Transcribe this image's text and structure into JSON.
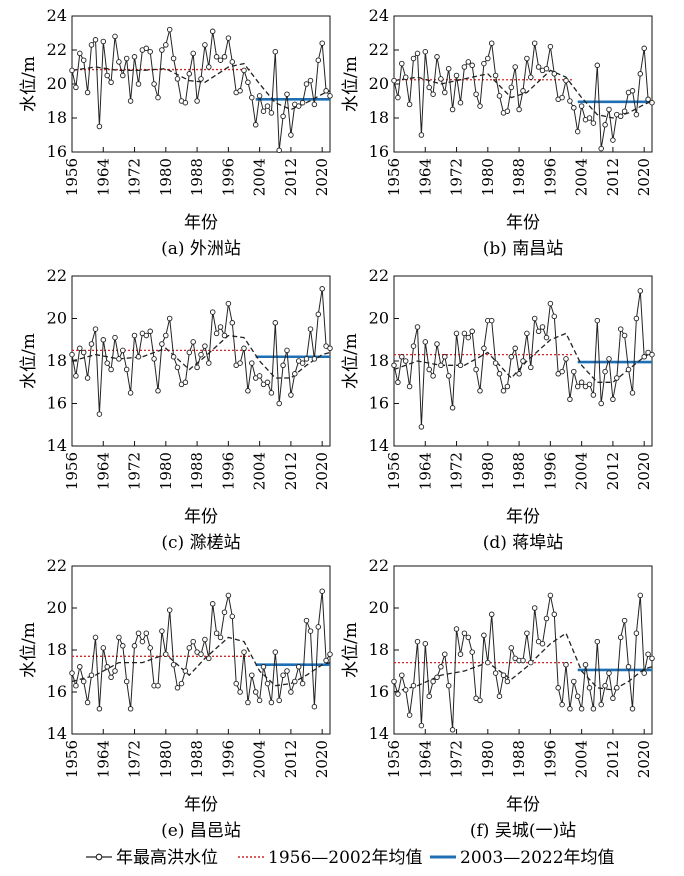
{
  "figure": {
    "legend": {
      "observed": "年最高洪水位",
      "mean_1": "1956—2002年均值",
      "mean_2": "2003—2022年均值"
    },
    "colors": {
      "observed": "#222222",
      "trend": "#222222",
      "mean_1": "#d62728",
      "mean_2": "#1f6fb4"
    }
  },
  "chart_data": [
    {
      "type": "line",
      "caption": "(a) 外洲站",
      "xlabel": "年份",
      "ylabel": "水位/m",
      "xlim": [
        1956,
        2022
      ],
      "ylim": [
        16,
        24
      ],
      "yticks": [
        16,
        18,
        20,
        22,
        24
      ],
      "xticks": [
        1956,
        1964,
        1972,
        1980,
        1988,
        1996,
        2004,
        2012,
        2020
      ],
      "start_year": 1956,
      "values": [
        20.8,
        19.8,
        21.8,
        21.4,
        19.5,
        22.3,
        22.6,
        17.5,
        22.5,
        20.5,
        20.1,
        22.8,
        21.3,
        20.5,
        21.5,
        19.0,
        21.6,
        20.0,
        22.0,
        22.1,
        21.9,
        20.0,
        19.2,
        22.0,
        22.3,
        23.2,
        21.5,
        20.3,
        19.0,
        18.9,
        20.6,
        21.8,
        19.0,
        20.3,
        22.3,
        21.0,
        23.1,
        21.6,
        21.4,
        21.6,
        22.7,
        21.3,
        19.5,
        19.6,
        20.8,
        20.1,
        19.2,
        17.6,
        19.3,
        18.4,
        18.7,
        18.3,
        21.9,
        16.1,
        18.1,
        19.4,
        17.0,
        18.8,
        18.7,
        18.9,
        20.0,
        20.2,
        18.8,
        21.4,
        22.4,
        19.6,
        19.3
      ],
      "trend": [
        [
          1956,
          20.8
        ],
        [
          1962,
          21.0
        ],
        [
          1968,
          20.8
        ],
        [
          1974,
          20.8
        ],
        [
          1980,
          20.9
        ],
        [
          1986,
          20.2
        ],
        [
          1990,
          20.1
        ],
        [
          1996,
          21.0
        ],
        [
          2000,
          21.2
        ],
        [
          2004,
          20.0
        ],
        [
          2008,
          18.9
        ],
        [
          2012,
          18.5
        ],
        [
          2016,
          18.9
        ],
        [
          2020,
          19.4
        ],
        [
          2022,
          19.6
        ]
      ],
      "mean_1": 20.85,
      "mean_2": 19.1
    },
    {
      "type": "line",
      "caption": "(b) 南昌站",
      "xlabel": "年份",
      "ylabel": "水位/m",
      "xlim": [
        1956,
        2022
      ],
      "ylim": [
        16,
        24
      ],
      "yticks": [
        16,
        18,
        20,
        22,
        24
      ],
      "xticks": [
        1956,
        1964,
        1972,
        1980,
        1988,
        1996,
        2004,
        2012,
        2020
      ],
      "start_year": 1956,
      "values": [
        20.2,
        19.2,
        21.2,
        20.4,
        18.8,
        21.5,
        21.8,
        17.0,
        21.9,
        19.8,
        19.4,
        21.6,
        20.3,
        19.5,
        20.9,
        18.5,
        20.5,
        18.9,
        21.0,
        21.3,
        21.1,
        19.4,
        18.7,
        21.2,
        21.5,
        22.4,
        20.5,
        19.3,
        18.3,
        18.4,
        19.8,
        21.0,
        18.5,
        19.6,
        21.5,
        20.4,
        22.4,
        21.0,
        20.8,
        20.9,
        22.2,
        20.6,
        19.1,
        19.2,
        20.2,
        19.0,
        18.6,
        17.2,
        18.7,
        17.9,
        18.0,
        17.7,
        21.1,
        16.2,
        17.6,
        18.5,
        16.7,
        18.2,
        18.1,
        18.4,
        19.5,
        19.6,
        18.2,
        20.6,
        22.1,
        19.1,
        18.9
      ],
      "trend": [
        [
          1956,
          20.2
        ],
        [
          1962,
          20.4
        ],
        [
          1968,
          20.0
        ],
        [
          1974,
          20.3
        ],
        [
          1980,
          20.6
        ],
        [
          1986,
          19.2
        ],
        [
          1990,
          19.5
        ],
        [
          1996,
          20.8
        ],
        [
          2000,
          20.4
        ],
        [
          2004,
          19.2
        ],
        [
          2008,
          18.2
        ],
        [
          2012,
          18.0
        ],
        [
          2016,
          18.3
        ],
        [
          2020,
          18.8
        ],
        [
          2022,
          19.0
        ]
      ],
      "mean_1": 20.25,
      "mean_2": 18.95
    },
    {
      "type": "line",
      "caption": "(c) 滁槎站",
      "xlabel": "年份",
      "ylabel": "水位/m",
      "xlim": [
        1956,
        2022
      ],
      "ylim": [
        14,
        22
      ],
      "yticks": [
        14,
        16,
        18,
        20,
        22
      ],
      "xticks": [
        1956,
        1964,
        1972,
        1980,
        1988,
        1996,
        2004,
        2012,
        2020
      ],
      "start_year": 1956,
      "values": [
        18.3,
        17.3,
        18.6,
        18.4,
        17.2,
        18.8,
        19.5,
        15.5,
        19.0,
        17.9,
        17.6,
        19.1,
        18.1,
        18.5,
        17.6,
        16.5,
        19.2,
        18.2,
        19.3,
        19.2,
        19.4,
        18.1,
        16.6,
        18.8,
        19.2,
        20.0,
        18.2,
        17.7,
        16.9,
        17.0,
        18.4,
        18.9,
        17.7,
        18.3,
        18.7,
        17.9,
        20.3,
        19.3,
        19.6,
        19.2,
        20.7,
        19.8,
        17.8,
        17.9,
        18.6,
        16.6,
        17.9,
        17.2,
        17.3,
        16.9,
        17.0,
        16.5,
        19.8,
        16.0,
        17.8,
        18.5,
        16.4,
        17.4,
        18.0,
        17.9,
        18.1,
        19.5,
        18.1,
        20.2,
        21.4,
        18.7,
        18.6
      ],
      "trend": [
        [
          1956,
          18.0
        ],
        [
          1962,
          18.3
        ],
        [
          1968,
          18.1
        ],
        [
          1974,
          18.2
        ],
        [
          1980,
          18.6
        ],
        [
          1986,
          17.6
        ],
        [
          1990,
          18.2
        ],
        [
          1996,
          19.2
        ],
        [
          2000,
          19.1
        ],
        [
          2004,
          18.0
        ],
        [
          2008,
          17.2
        ],
        [
          2012,
          17.2
        ],
        [
          2016,
          17.8
        ],
        [
          2020,
          18.3
        ],
        [
          2022,
          18.4
        ]
      ],
      "mean_1": 18.5,
      "mean_2": 18.2
    },
    {
      "type": "line",
      "caption": "(d) 蒋埠站",
      "xlabel": "年份",
      "ylabel": "水位/m",
      "xlim": [
        1956,
        2022
      ],
      "ylim": [
        14,
        22
      ],
      "yticks": [
        14,
        16,
        18,
        20,
        22
      ],
      "xticks": [
        1956,
        1964,
        1972,
        1980,
        1988,
        1996,
        2004,
        2012,
        2020
      ],
      "start_year": 1956,
      "values": [
        17.8,
        17.0,
        18.2,
        18.0,
        16.8,
        18.7,
        19.6,
        14.9,
        18.9,
        17.6,
        17.3,
        18.8,
        17.8,
        18.2,
        17.3,
        15.8,
        19.3,
        17.8,
        19.3,
        19.1,
        19.4,
        17.6,
        16.6,
        18.6,
        19.9,
        19.9,
        17.9,
        17.4,
        16.6,
        16.8,
        18.2,
        18.6,
        17.4,
        18.0,
        19.3,
        17.7,
        20.0,
        19.4,
        19.6,
        19.1,
        20.7,
        20.1,
        17.4,
        17.5,
        18.1,
        16.2,
        17.5,
        16.8,
        17.0,
        16.8,
        16.9,
        16.4,
        19.9,
        16.0,
        17.5,
        18.1,
        16.2,
        17.2,
        19.5,
        19.2,
        17.6,
        16.5,
        20.0,
        21.3,
        18.2,
        18.4,
        18.3
      ],
      "trend": [
        [
          1956,
          17.6
        ],
        [
          1962,
          18.0
        ],
        [
          1968,
          17.8
        ],
        [
          1974,
          17.8
        ],
        [
          1980,
          18.4
        ],
        [
          1986,
          17.2
        ],
        [
          1990,
          18.0
        ],
        [
          1996,
          19.0
        ],
        [
          2000,
          19.3
        ],
        [
          2004,
          17.8
        ],
        [
          2008,
          17.0
        ],
        [
          2012,
          17.0
        ],
        [
          2016,
          17.6
        ],
        [
          2020,
          18.2
        ],
        [
          2022,
          18.4
        ]
      ],
      "mean_1": 18.3,
      "mean_2": 17.95
    },
    {
      "type": "line",
      "caption": "(e) 昌邑站",
      "xlabel": "年份",
      "ylabel": "水位/m",
      "xlim": [
        1956,
        2022
      ],
      "ylim": [
        14,
        22
      ],
      "yticks": [
        14,
        16,
        18,
        20,
        22
      ],
      "xticks": [
        1956,
        1964,
        1972,
        1980,
        1988,
        1996,
        2004,
        2012,
        2020
      ],
      "start_year": 1956,
      "values": [
        16.9,
        16.3,
        17.2,
        16.5,
        15.5,
        16.8,
        18.6,
        15.2,
        18.1,
        17.2,
        16.7,
        17.0,
        18.6,
        18.2,
        16.5,
        15.2,
        18.2,
        18.8,
        18.4,
        18.8,
        18.1,
        16.3,
        16.3,
        18.9,
        17.8,
        19.9,
        17.3,
        16.2,
        16.4,
        17.0,
        18.1,
        18.4,
        17.9,
        17.8,
        18.5,
        17.6,
        20.2,
        18.8,
        18.6,
        19.8,
        20.6,
        19.6,
        16.4,
        16.0,
        17.9,
        15.5,
        16.8,
        16.0,
        15.6,
        17.2,
        16.4,
        15.5,
        17.9,
        15.6,
        16.8,
        17.0,
        16.0,
        16.5,
        17.2,
        16.4,
        19.4,
        18.9,
        15.3,
        19.1,
        20.8,
        17.5,
        17.8
      ],
      "trend": [
        [
          1956,
          16.5
        ],
        [
          1962,
          16.8
        ],
        [
          1968,
          17.4
        ],
        [
          1974,
          17.4
        ],
        [
          1980,
          17.8
        ],
        [
          1986,
          16.8
        ],
        [
          1990,
          17.6
        ],
        [
          1996,
          18.6
        ],
        [
          2000,
          18.4
        ],
        [
          2004,
          17.0
        ],
        [
          2008,
          16.3
        ],
        [
          2012,
          16.4
        ],
        [
          2016,
          16.8
        ],
        [
          2020,
          17.3
        ],
        [
          2022,
          17.4
        ]
      ],
      "mean_1": 17.7,
      "mean_2": 17.3
    },
    {
      "type": "line",
      "caption": "(f) 吴城(一)站",
      "xlabel": "年份",
      "ylabel": "水位/m",
      "xlim": [
        1956,
        2022
      ],
      "ylim": [
        14,
        22
      ],
      "yticks": [
        14,
        16,
        18,
        20,
        22
      ],
      "xticks": [
        1956,
        1964,
        1972,
        1980,
        1988,
        1996,
        2004,
        2012,
        2020
      ],
      "start_year": 1956,
      "values": [
        16.5,
        15.9,
        16.8,
        16.1,
        14.9,
        16.3,
        18.4,
        14.4,
        18.3,
        15.8,
        16.5,
        16.7,
        17.2,
        17.8,
        16.3,
        14.2,
        19.0,
        17.8,
        18.8,
        18.6,
        17.9,
        15.7,
        15.6,
        18.7,
        17.4,
        19.7,
        16.9,
        15.8,
        16.8,
        16.5,
        18.1,
        17.6,
        17.5,
        17.5,
        18.8,
        17.4,
        20.0,
        18.4,
        18.3,
        19.5,
        20.6,
        19.7,
        16.2,
        15.4,
        17.3,
        15.2,
        16.5,
        15.8,
        15.2,
        17.3,
        16.2,
        15.2,
        18.4,
        15.4,
        16.3,
        16.9,
        15.7,
        16.2,
        18.6,
        19.4,
        17.2,
        15.2,
        18.8,
        20.6,
        16.9,
        17.8,
        17.6
      ],
      "trend": [
        [
          1956,
          16.0
        ],
        [
          1962,
          16.3
        ],
        [
          1968,
          16.8
        ],
        [
          1974,
          17.0
        ],
        [
          1980,
          17.4
        ],
        [
          1986,
          16.6
        ],
        [
          1990,
          17.2
        ],
        [
          1996,
          18.3
        ],
        [
          2000,
          18.8
        ],
        [
          2004,
          17.0
        ],
        [
          2008,
          16.2
        ],
        [
          2012,
          16.1
        ],
        [
          2016,
          16.5
        ],
        [
          2020,
          17.1
        ],
        [
          2022,
          17.2
        ]
      ],
      "mean_1": 17.4,
      "mean_2": 17.05
    }
  ]
}
